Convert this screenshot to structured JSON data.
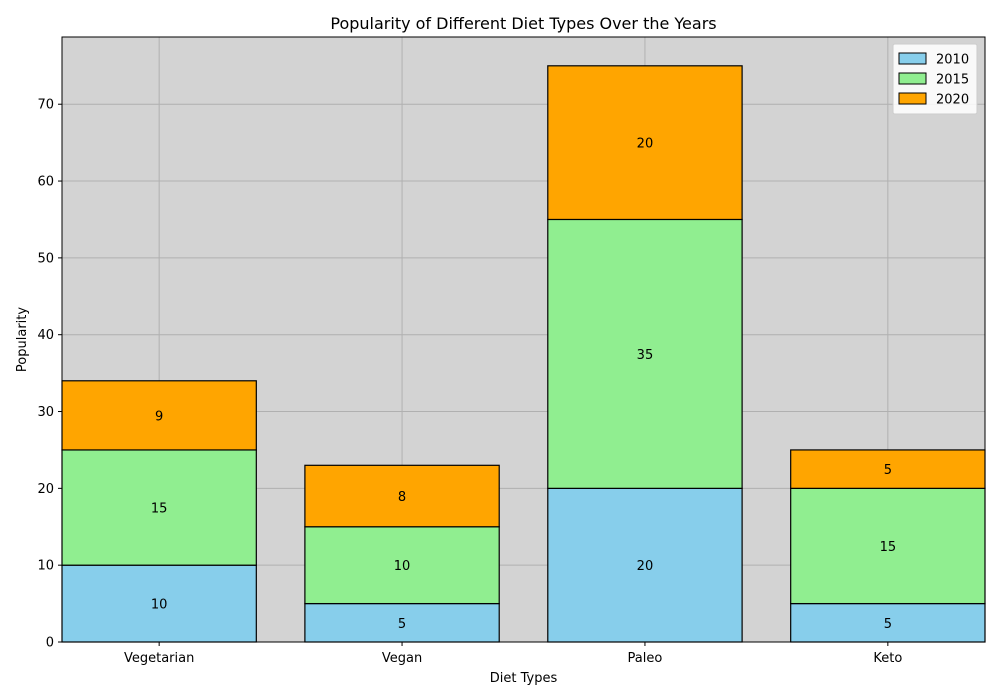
{
  "chart_data": {
    "type": "bar",
    "stacked": true,
    "title": "Popularity of Different Diet Types Over the Years",
    "xlabel": "Diet Types",
    "ylabel": "Popularity",
    "categories": [
      "Vegetarian",
      "Vegan",
      "Paleo",
      "Keto"
    ],
    "series": [
      {
        "name": "2010",
        "values": [
          10,
          5,
          20,
          5
        ],
        "color": "#87CEEB"
      },
      {
        "name": "2015",
        "values": [
          15,
          10,
          35,
          15
        ],
        "color": "#90EE90"
      },
      {
        "name": "2020",
        "values": [
          9,
          8,
          20,
          5
        ],
        "color": "#FFA500"
      }
    ],
    "ylim": [
      0,
      78.75
    ],
    "yticks": [
      0,
      10,
      20,
      30,
      40,
      50,
      60,
      70
    ],
    "grid": true,
    "legend_position": "top-right",
    "plot_background": "#D3D3D3",
    "bar_edge_color": "#000000"
  }
}
